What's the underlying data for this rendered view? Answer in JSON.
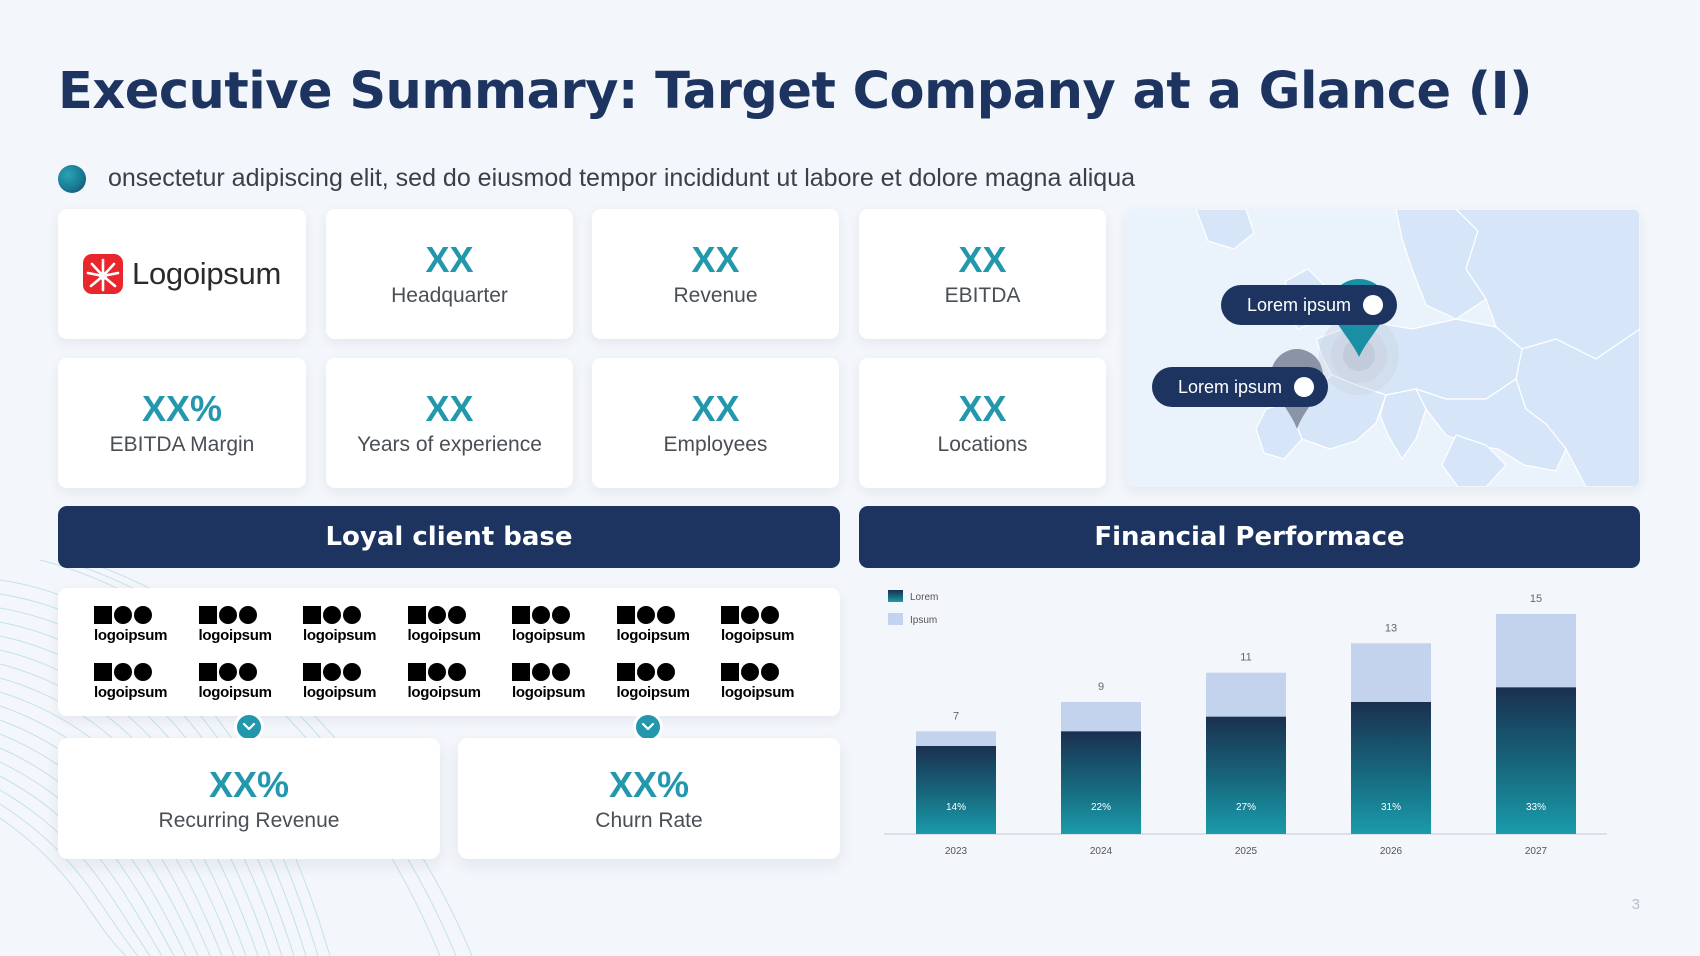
{
  "title": "Executive Summary: Target Company at a Glance (I)",
  "bullet": "onsectetur adipiscing elit, sed do eiusmod tempor incididunt ut labore et dolore magna aliqua",
  "logo": {
    "text": "Logoipsum",
    "icon": "sunburst-logo-icon",
    "color": "#e8262b"
  },
  "kpis": [
    {
      "value": "XX",
      "label": "Headquarter"
    },
    {
      "value": "XX",
      "label": "Revenue"
    },
    {
      "value": "XX",
      "label": "EBITDA"
    },
    {
      "value": "XX%",
      "label": "EBITDA Margin"
    },
    {
      "value": "XX",
      "label": "Years of experience"
    },
    {
      "value": "XX",
      "label": "Employees"
    },
    {
      "value": "XX",
      "label": "Locations"
    }
  ],
  "map": {
    "pins": [
      {
        "label": "Lorem ipsum",
        "icon": "location-pin-icon"
      },
      {
        "label": "Lorem ipsum",
        "icon": "location-pin-icon"
      }
    ]
  },
  "sections": {
    "clients": "Loyal client base",
    "financial": "Financial Performace"
  },
  "client_logos": [
    "logoipsum",
    "logoipsum",
    "logoipsum",
    "logoipsum",
    "logoipsum",
    "logoipsum",
    "logoipsum",
    "logoipsum",
    "logoipsum",
    "logoipsum",
    "logoipsum",
    "logoipsum",
    "logoipsum",
    "logoipsum"
  ],
  "client_metrics": [
    {
      "value": "XX%",
      "label": "Recurring Revenue"
    },
    {
      "value": "XX%",
      "label": "Churn Rate"
    }
  ],
  "chart_data": {
    "type": "bar",
    "stacked": true,
    "categories": [
      "2023",
      "2024",
      "2025",
      "2026",
      "2027"
    ],
    "totals": [
      7,
      9,
      11,
      13,
      15
    ],
    "series": [
      {
        "name": "Lorem",
        "values": [
          6,
          7,
          8,
          9,
          10
        ],
        "labels": [
          "14%",
          "22%",
          "27%",
          "31%",
          "33%"
        ],
        "color": "#1a8fa3"
      },
      {
        "name": "Ipsum",
        "values": [
          1,
          2,
          3,
          4,
          5
        ],
        "color": "#c3d3ee"
      }
    ],
    "ylim": [
      0,
      15
    ],
    "legend": "top-left",
    "grid": false
  },
  "page_number": "3",
  "colors": {
    "navy": "#1d3461",
    "teal": "#2398ad",
    "light_blue": "#c3d3ee"
  }
}
